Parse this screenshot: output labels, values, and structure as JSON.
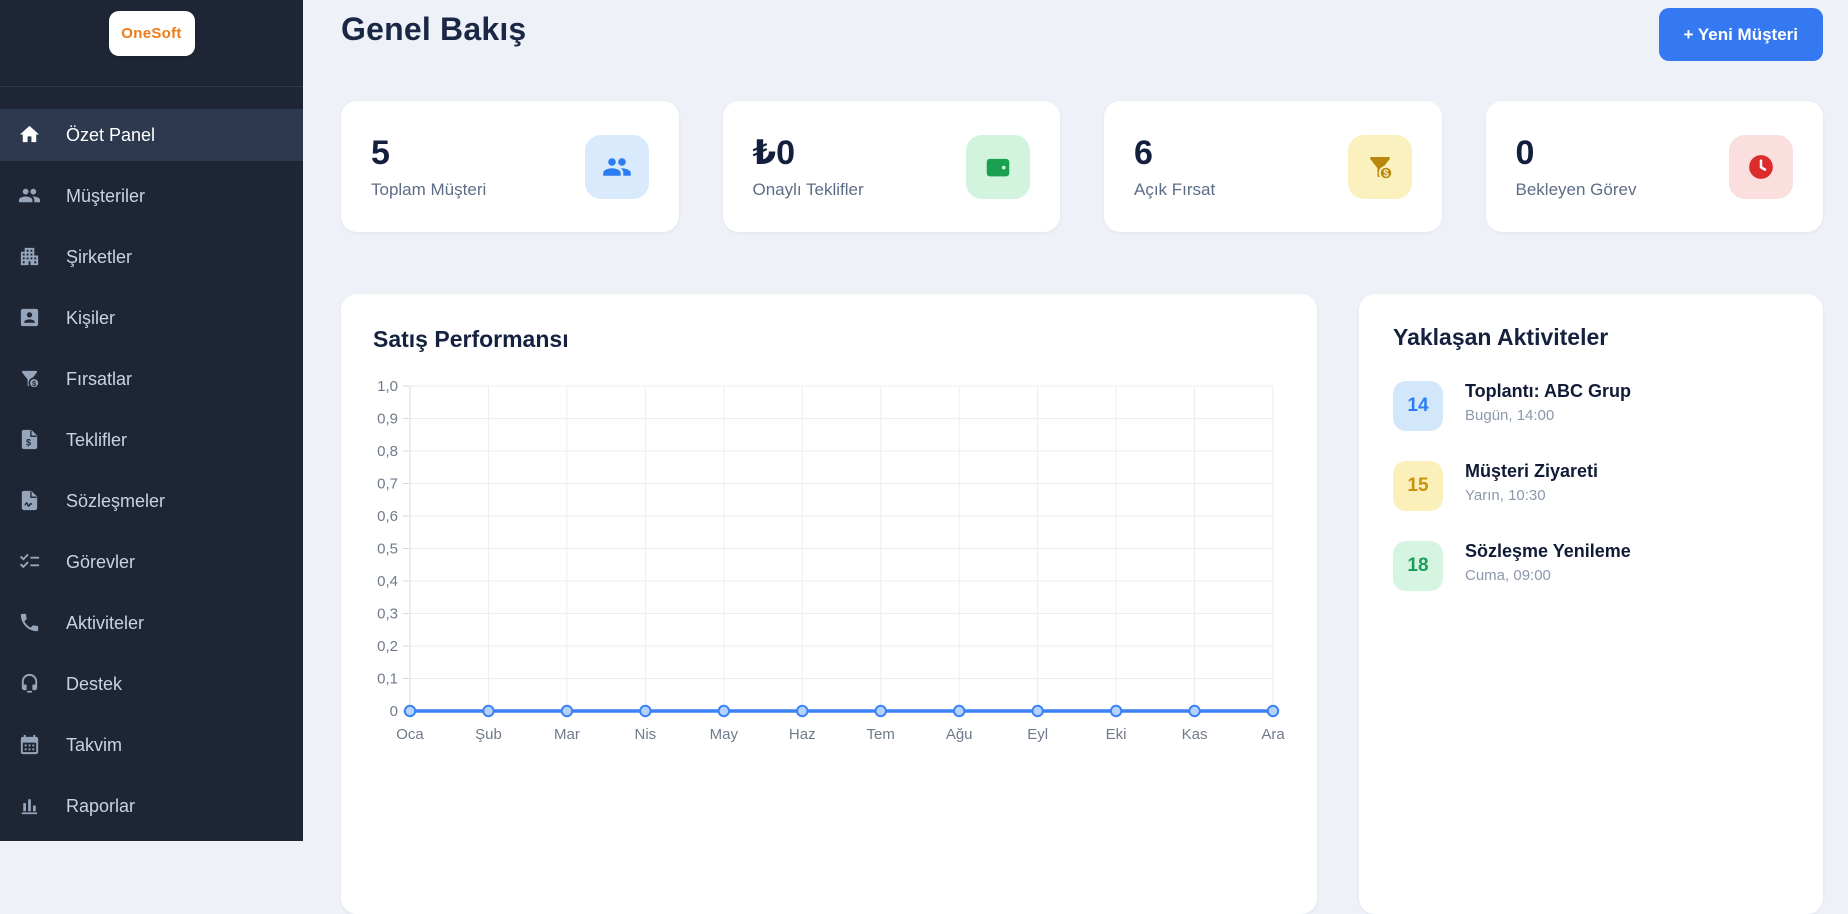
{
  "app": {
    "brand": "OneSoft"
  },
  "theme": {
    "accent_blue": "#3479f2",
    "sidebar_bg": "#1e2636",
    "page_bg": "#eef1f7",
    "card_bg": "#ffffff"
  },
  "sidebar": {
    "active_index": 0,
    "items": [
      {
        "key": "ozet-panel",
        "label": "Özet Panel",
        "icon": "home-icon"
      },
      {
        "key": "musteriler",
        "label": "Müşteriler",
        "icon": "people-icon"
      },
      {
        "key": "sirketler",
        "label": "Şirketler",
        "icon": "building-icon"
      },
      {
        "key": "kisiler",
        "label": "Kişiler",
        "icon": "contact-card-icon"
      },
      {
        "key": "firsatlar",
        "label": "Fırsatlar",
        "icon": "funnel-dollar-icon"
      },
      {
        "key": "teklifler",
        "label": "Teklifler",
        "icon": "document-dollar-icon"
      },
      {
        "key": "sozlesmeler",
        "label": "Sözleşmeler",
        "icon": "document-signature-icon"
      },
      {
        "key": "gorevler",
        "label": "Görevler",
        "icon": "checklist-icon"
      },
      {
        "key": "aktiviteler",
        "label": "Aktiviteler",
        "icon": "phone-icon"
      },
      {
        "key": "destek",
        "label": "Destek",
        "icon": "headset-icon"
      },
      {
        "key": "takvim",
        "label": "Takvim",
        "icon": "calendar-icon"
      },
      {
        "key": "raporlar",
        "label": "Raporlar",
        "icon": "bar-chart-icon"
      }
    ]
  },
  "header": {
    "title": "Genel Bakış",
    "new_customer_button": "+ Yeni Müşteri"
  },
  "stats": [
    {
      "value": "5",
      "label": "Toplam Müşteri",
      "icon": "people-icon",
      "icon_color": "#2e7cf2",
      "icon_bg": "#d9eafd"
    },
    {
      "value": "₺0",
      "label": "Onaylı Teklifler",
      "icon": "wallet-icon",
      "icon_color": "#1aa04f",
      "icon_bg": "#d2f4df"
    },
    {
      "value": "6",
      "label": "Açık Fırsat",
      "icon": "funnel-dollar-icon",
      "icon_color": "#b8870b",
      "icon_bg": "#fbf1bf"
    },
    {
      "value": "0",
      "label": "Bekleyen Görev",
      "icon": "clock-icon",
      "icon_color": "#dc2c2c",
      "icon_bg": "#fbdede"
    }
  ],
  "chart_data": {
    "type": "line",
    "title": "Satış Performansı",
    "x": [
      "Oca",
      "Şub",
      "Mar",
      "Nis",
      "May",
      "Haz",
      "Tem",
      "Ağu",
      "Eyl",
      "Eki",
      "Kas",
      "Ara"
    ],
    "series": [
      {
        "name": "Satış",
        "values": [
          0,
          0,
          0,
          0,
          0,
          0,
          0,
          0,
          0,
          0,
          0,
          0
        ]
      }
    ],
    "y_ticks": [
      "1,0",
      "0,9",
      "0,8",
      "0,7",
      "0,6",
      "0,5",
      "0,4",
      "0,3",
      "0,2",
      "0,1",
      "0"
    ],
    "xlabel": "",
    "ylabel": "",
    "ylim": [
      0,
      1
    ],
    "grid": true,
    "legend": "none",
    "line_color": "#3b82f6",
    "marker_fill": "#b5d3fa"
  },
  "activities": {
    "title": "Yaklaşan Aktiviteler",
    "items": [
      {
        "day": "14",
        "title": "Toplantı: ABC Grup",
        "time": "Bugün, 14:00",
        "badge_color": "#2e7cf2",
        "badge_bg": "#d3e7fb"
      },
      {
        "day": "15",
        "title": "Müşteri Ziyareti",
        "time": "Yarın, 10:30",
        "badge_color": "#c9940d",
        "badge_bg": "#fbefba"
      },
      {
        "day": "18",
        "title": "Sözleşme Yenileme",
        "time": "Cuma, 09:00",
        "badge_color": "#1f9e55",
        "badge_bg": "#d5f4e2"
      }
    ]
  }
}
